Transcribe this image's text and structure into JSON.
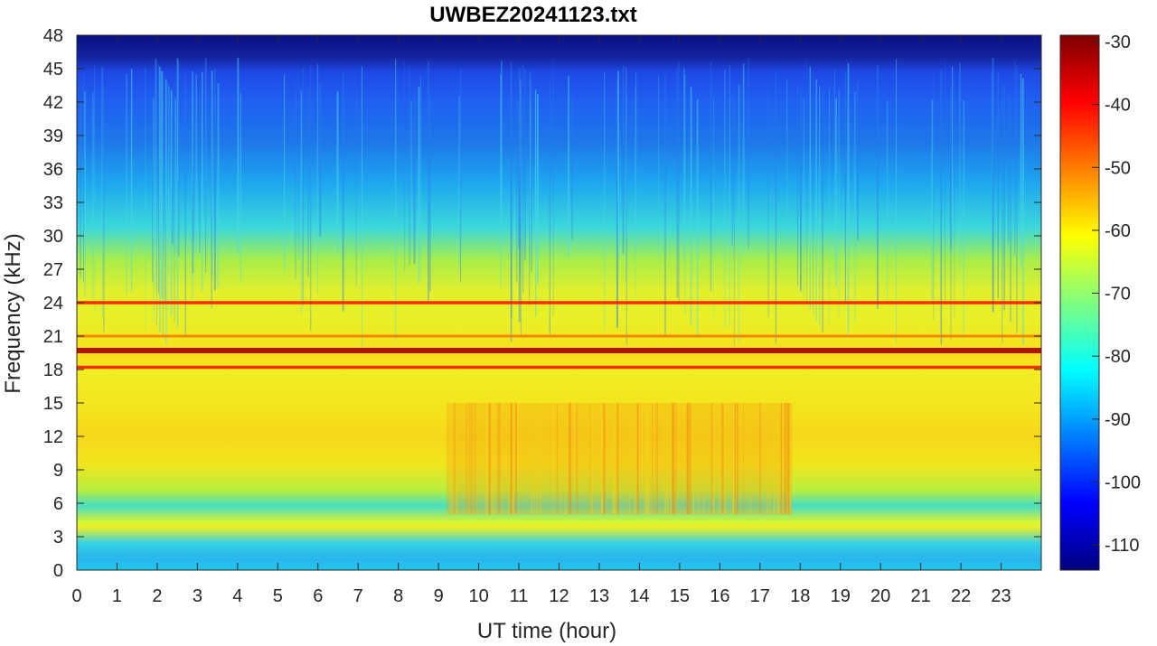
{
  "chart_data": {
    "type": "heatmap",
    "title": "UWBEZ20241123.txt",
    "xlabel": "UT time (hour)",
    "ylabel": "Frequency (kHz)",
    "xlim": [
      0,
      24
    ],
    "ylim": [
      0,
      48
    ],
    "x_ticks": [
      0,
      1,
      2,
      3,
      4,
      5,
      6,
      7,
      8,
      9,
      10,
      11,
      12,
      13,
      14,
      15,
      16,
      17,
      18,
      19,
      20,
      21,
      22,
      23
    ],
    "y_ticks": [
      0,
      3,
      6,
      9,
      12,
      15,
      18,
      21,
      24,
      27,
      30,
      33,
      36,
      39,
      42,
      45,
      48
    ],
    "colorbar": {
      "range": [
        -114,
        -29
      ],
      "ticks": [
        -30,
        -40,
        -50,
        -60,
        -70,
        -80,
        -90,
        -100,
        -110
      ],
      "colormap": "jet"
    },
    "features": [
      {
        "freq_khz": 19.7,
        "level_db": -33
      },
      {
        "freq_khz": 18.2,
        "level_db": -42
      },
      {
        "freq_khz": 24.0,
        "level_db": -42
      },
      {
        "freq_khz": 21.0,
        "level_db": -50
      },
      {
        "freq_khz": 4.3,
        "level_db": -65
      }
    ],
    "grid": false
  }
}
